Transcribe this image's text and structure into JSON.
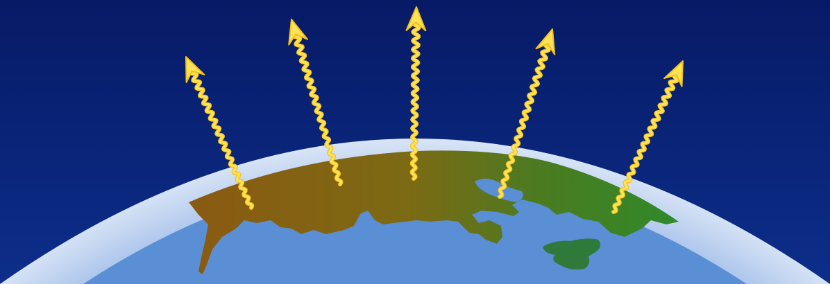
{
  "colors": {
    "sky_top": "#071a66",
    "sky_bottom": "#0c2e8a",
    "atmosphere_outer": "#eef4fb",
    "atmosphere_inner": "#a9c3ea",
    "ocean": "#5a8fd6",
    "land_west": "#8a5a12",
    "land_mid": "#7c6a14",
    "land_east": "#2f8a2a",
    "island": "#2e7a3a",
    "arrow": "#ffe15a",
    "arrow_outline": "#f2c21a"
  },
  "icons": {
    "arrow": "wavy-up-arrow-icon"
  },
  "arrows": {
    "count": 5,
    "meaning": []
  }
}
